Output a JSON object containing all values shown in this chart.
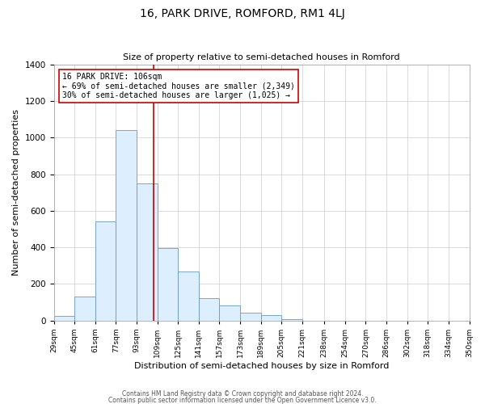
{
  "title": "16, PARK DRIVE, ROMFORD, RM1 4LJ",
  "subtitle": "Size of property relative to semi-detached houses in Romford",
  "xlabel": "Distribution of semi-detached houses by size in Romford",
  "ylabel": "Number of semi-detached properties",
  "bar_color": "#ddeeff",
  "bar_edge_color": "#6699cc",
  "grid_color": "#cccccc",
  "background_color": "#ffffff",
  "vline_color": "#cc0000",
  "vline_x": 106,
  "categories": [
    "29sqm",
    "45sqm",
    "61sqm",
    "77sqm",
    "93sqm",
    "109sqm",
    "125sqm",
    "141sqm",
    "157sqm",
    "173sqm",
    "189sqm",
    "205sqm",
    "221sqm",
    "238sqm",
    "254sqm",
    "270sqm",
    "286sqm",
    "302sqm",
    "318sqm",
    "334sqm",
    "350sqm"
  ],
  "bin_edges": [
    29,
    45,
    61,
    77,
    93,
    109,
    125,
    141,
    157,
    173,
    189,
    205,
    221,
    238,
    254,
    270,
    286,
    302,
    318,
    334,
    350
  ],
  "values": [
    25,
    130,
    540,
    1040,
    750,
    395,
    270,
    120,
    82,
    44,
    28,
    5,
    0,
    0,
    0,
    0,
    0,
    0,
    0,
    0,
    10
  ],
  "ylim": [
    0,
    1400
  ],
  "yticks": [
    0,
    200,
    400,
    600,
    800,
    1000,
    1200,
    1400
  ],
  "annotation_line1": "16 PARK DRIVE: 106sqm",
  "annotation_line2": "← 69% of semi-detached houses are smaller (2,349)",
  "annotation_line3": "30% of semi-detached houses are larger (1,025) →",
  "footer1": "Contains HM Land Registry data © Crown copyright and database right 2024.",
  "footer2": "Contains public sector information licensed under the Open Government Licence v3.0."
}
